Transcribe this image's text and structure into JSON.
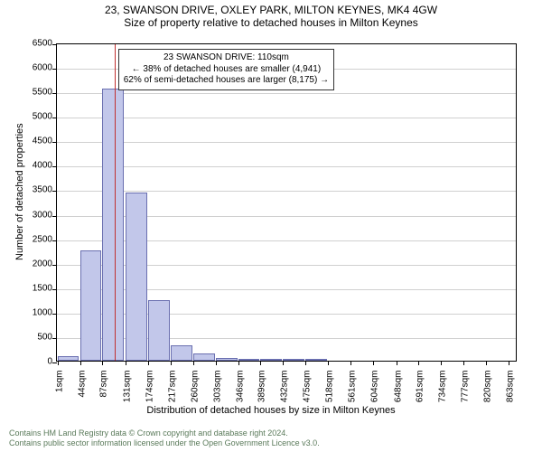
{
  "title1": "23, SWANSON DRIVE, OXLEY PARK, MILTON KEYNES, MK4 4GW",
  "title2": "Size of property relative to detached houses in Milton Keynes",
  "ylabel": "Number of detached properties",
  "xlabel": "Distribution of detached houses by size in Milton Keynes",
  "footer1": "Contains HM Land Registry data © Crown copyright and database right 2024.",
  "footer2": "Contains public sector information licensed under the Open Government Licence v3.0.",
  "annot_line1": "23 SWANSON DRIVE: 110sqm",
  "annot_line2": "← 38% of detached houses are smaller (4,941)",
  "annot_line3": "62% of semi-detached houses are larger (8,175) →",
  "chart": {
    "type": "histogram",
    "plot_background": "#ffffff",
    "grid_color": "#d0d0d0",
    "axis_color": "#000000",
    "bar_fill": "#c2c7ea",
    "bar_stroke": "#6a6fb0",
    "marker_color": "#c03030",
    "marker_x": 110,
    "x_min": 0,
    "x_max": 880,
    "y_min": 0,
    "y_max": 6500,
    "y_tick_step": 500,
    "y_ticks": [
      0,
      500,
      1000,
      1500,
      2000,
      2500,
      3000,
      3500,
      4000,
      4500,
      5000,
      5500,
      6000,
      6500
    ],
    "x_ticks": [
      1,
      44,
      87,
      131,
      174,
      217,
      260,
      303,
      346,
      389,
      432,
      475,
      518,
      561,
      604,
      648,
      691,
      734,
      777,
      820,
      863
    ],
    "x_tick_labels": [
      "1sqm",
      "44sqm",
      "87sqm",
      "131sqm",
      "174sqm",
      "217sqm",
      "260sqm",
      "303sqm",
      "346sqm",
      "389sqm",
      "432sqm",
      "475sqm",
      "518sqm",
      "561sqm",
      "604sqm",
      "648sqm",
      "691sqm",
      "734sqm",
      "777sqm",
      "820sqm",
      "863sqm"
    ],
    "bin_width": 43,
    "bars": [
      {
        "x0": 1,
        "y": 90
      },
      {
        "x0": 44,
        "y": 2260
      },
      {
        "x0": 87,
        "y": 5550
      },
      {
        "x0": 131,
        "y": 3430
      },
      {
        "x0": 174,
        "y": 1230
      },
      {
        "x0": 217,
        "y": 320
      },
      {
        "x0": 260,
        "y": 140
      },
      {
        "x0": 303,
        "y": 50
      },
      {
        "x0": 346,
        "y": 30
      },
      {
        "x0": 389,
        "y": 20
      },
      {
        "x0": 432,
        "y": 18
      },
      {
        "x0": 475,
        "y": 15
      }
    ],
    "title_fontsize": 12,
    "label_fontsize": 11,
    "tick_fontsize": 10,
    "annot_fontsize": 10
  }
}
